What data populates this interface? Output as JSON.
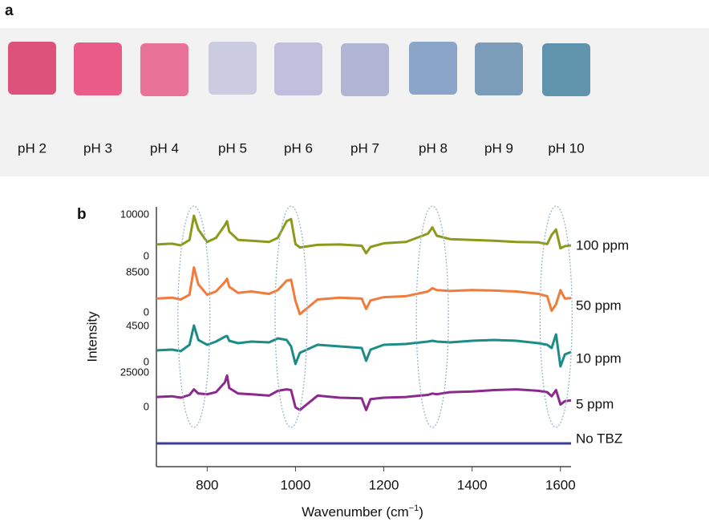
{
  "panel_a": {
    "label": "a",
    "samples": [
      {
        "label": "pH 2",
        "color": "#d9406e"
      },
      {
        "label": "pH 3",
        "color": "#e84a7c"
      },
      {
        "label": "pH 4",
        "color": "#e8648f"
      },
      {
        "label": "pH 5",
        "color": "#c6c8e0"
      },
      {
        "label": "pH 6",
        "color": "#bcb8dc"
      },
      {
        "label": "pH 7",
        "color": "#a9aed0"
      },
      {
        "label": "pH 8",
        "color": "#7f9cc4"
      },
      {
        "label": "pH 9",
        "color": "#6f93b4"
      },
      {
        "label": "pH 10",
        "color": "#4f8aa4"
      }
    ]
  },
  "chart_data": {
    "type": "line",
    "label": "b",
    "ylabel": "Intensity",
    "xlabel": {
      "text": "Wavenumber (cm",
      "superscript": "−1",
      "tail": ")"
    },
    "xlim": [
      685,
      1624
    ],
    "xticks": [
      800,
      1000,
      1200,
      1400,
      1600
    ],
    "highlight_peaks": [
      770,
      990,
      1310,
      1590
    ],
    "x": [
      685,
      720,
      740,
      760,
      770,
      780,
      800,
      820,
      840,
      845,
      850,
      870,
      900,
      940,
      960,
      980,
      990,
      1000,
      1010,
      1050,
      1100,
      1150,
      1160,
      1170,
      1200,
      1250,
      1300,
      1310,
      1320,
      1350,
      1400,
      1450,
      1500,
      1550,
      1570,
      1580,
      1590,
      1600,
      1610,
      1624
    ],
    "series": [
      {
        "name": "100 ppm",
        "color": "#8c9a1c",
        "ylim": [
          0,
          10000
        ],
        "yticks": [
          0,
          10000
        ],
        "values": [
          2900,
          3100,
          2700,
          4000,
          9800,
          6500,
          3500,
          4500,
          7500,
          8500,
          6000,
          4000,
          3800,
          3500,
          4500,
          8500,
          9000,
          3000,
          2200,
          2800,
          2900,
          2600,
          800,
          2300,
          3200,
          3500,
          5500,
          7000,
          5000,
          4200,
          4000,
          3800,
          3500,
          3400,
          3000,
          5200,
          6500,
          2000,
          2500,
          2700
        ]
      },
      {
        "name": "50 ppm",
        "color": "#f07b3a",
        "ylim": [
          0,
          8500
        ],
        "yticks": [
          0,
          8500
        ],
        "values": [
          3000,
          3200,
          2800,
          3800,
          9600,
          6000,
          3800,
          4500,
          6500,
          7200,
          5500,
          4200,
          4500,
          4000,
          4800,
          6800,
          7000,
          2500,
          -300,
          2800,
          3200,
          3000,
          800,
          2600,
          3300,
          3500,
          4500,
          5200,
          4800,
          4600,
          4800,
          4700,
          4500,
          4000,
          3500,
          400,
          1800,
          4800,
          3000,
          3100
        ]
      },
      {
        "name": "10 ppm",
        "color": "#1b8c86",
        "ylim": [
          0,
          4500
        ],
        "yticks": [
          0,
          4500
        ],
        "values": [
          1500,
          1600,
          1400,
          2200,
          4600,
          2800,
          2200,
          2600,
          3200,
          3300,
          2700,
          2400,
          2600,
          2500,
          3000,
          2800,
          2000,
          -200,
          1200,
          2200,
          2000,
          1800,
          200,
          1600,
          2200,
          2300,
          2600,
          2700,
          2600,
          2500,
          2700,
          2800,
          2700,
          2400,
          2200,
          1800,
          3500,
          -500,
          1000,
          1300
        ]
      },
      {
        "name": "5 ppm",
        "color": "#8a2a8c",
        "ylim": [
          0,
          25000
        ],
        "yticks": [
          0,
          25000
        ],
        "values": [
          7500,
          8000,
          7000,
          9000,
          13000,
          10000,
          9500,
          11000,
          18000,
          23000,
          14000,
          10000,
          9500,
          8500,
          12000,
          13000,
          12500,
          0,
          -2000,
          8500,
          7000,
          6500,
          -2000,
          6000,
          7000,
          7500,
          9000,
          10000,
          9500,
          11000,
          11500,
          12500,
          13000,
          12000,
          11000,
          8000,
          12500,
          2000,
          4500,
          5000
        ]
      },
      {
        "name": "No TBZ",
        "color": "#3d3d9c",
        "x": [
          685,
          1624
        ],
        "values": [
          0,
          0
        ]
      }
    ]
  }
}
